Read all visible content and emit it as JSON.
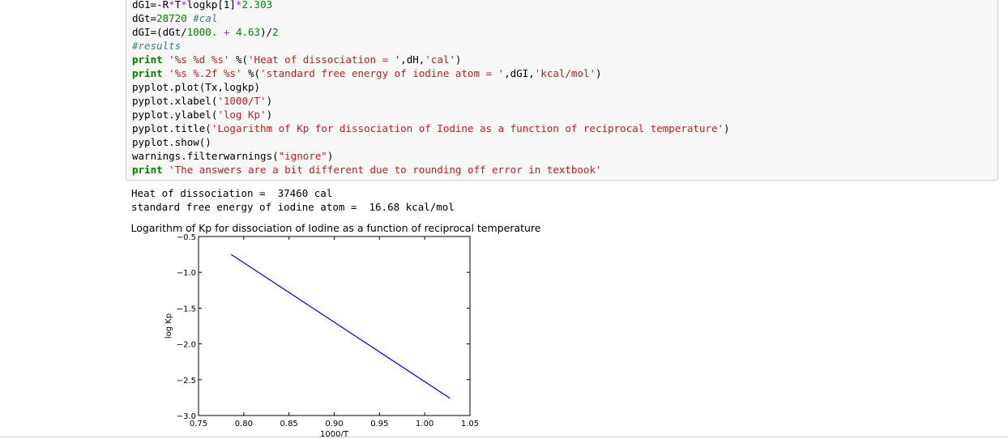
{
  "code_cell": {
    "lines": [
      [
        {
          "t": "dG1=-R",
          "c": ""
        },
        {
          "t": "*",
          "c": "op"
        },
        {
          "t": "T",
          "c": ""
        },
        {
          "t": "*",
          "c": "op"
        },
        {
          "t": "logkp[1]",
          "c": ""
        },
        {
          "t": "*",
          "c": "op"
        },
        {
          "t": "2.303",
          "c": "num"
        }
      ],
      [
        {
          "t": "dGt=",
          "c": ""
        },
        {
          "t": "28720",
          "c": "num"
        },
        {
          "t": " ",
          "c": ""
        },
        {
          "t": "#cal",
          "c": "cmt"
        }
      ],
      [
        {
          "t": "dGI=(dGt/",
          "c": ""
        },
        {
          "t": "1000.",
          "c": "num"
        },
        {
          "t": " ",
          "c": ""
        },
        {
          "t": "+",
          "c": "op"
        },
        {
          "t": " ",
          "c": ""
        },
        {
          "t": "4.63",
          "c": "num"
        },
        {
          "t": ")/",
          "c": ""
        },
        {
          "t": "2",
          "c": "num"
        }
      ],
      [
        {
          "t": "#results",
          "c": "cmt"
        }
      ],
      [
        {
          "t": "print",
          "c": "kw"
        },
        {
          "t": " ",
          "c": ""
        },
        {
          "t": "'%s %d %s'",
          "c": "str"
        },
        {
          "t": " %(",
          "c": ""
        },
        {
          "t": "'Heat of dissociation = '",
          "c": "str"
        },
        {
          "t": ",dH,",
          "c": ""
        },
        {
          "t": "'cal'",
          "c": "str"
        },
        {
          "t": ")",
          "c": ""
        }
      ],
      [
        {
          "t": "print",
          "c": "kw"
        },
        {
          "t": " ",
          "c": ""
        },
        {
          "t": "'%s %.2f %s'",
          "c": "str"
        },
        {
          "t": " %(",
          "c": ""
        },
        {
          "t": "'standard free energy of iodine atom = '",
          "c": "str"
        },
        {
          "t": ",dGI,",
          "c": ""
        },
        {
          "t": "'kcal/mol'",
          "c": "str"
        },
        {
          "t": ")",
          "c": ""
        }
      ],
      [
        {
          "t": "pyplot.plot(Tx,logkp)",
          "c": ""
        }
      ],
      [
        {
          "t": "pyplot.xlabel(",
          "c": ""
        },
        {
          "t": "'1000/T'",
          "c": "str"
        },
        {
          "t": ")",
          "c": ""
        }
      ],
      [
        {
          "t": "pyplot.ylabel(",
          "c": ""
        },
        {
          "t": "'log Kp'",
          "c": "str"
        },
        {
          "t": ")",
          "c": ""
        }
      ],
      [
        {
          "t": "pyplot.title(",
          "c": ""
        },
        {
          "t": "'Logarithm of Kp for dissociation of Iodine as a function of reciprocal temperature'",
          "c": "str"
        },
        {
          "t": ")",
          "c": ""
        }
      ],
      [
        {
          "t": "pyplot.show()",
          "c": ""
        }
      ],
      [
        {
          "t": "warnings.filterwarnings(",
          "c": ""
        },
        {
          "t": "\"ignore\"",
          "c": "str"
        },
        {
          "t": ")",
          "c": ""
        }
      ],
      [
        {
          "t": "print",
          "c": "kw"
        },
        {
          "t": " ",
          "c": ""
        },
        {
          "t": "'The answers are a bit different due to rounding off error in textbook'",
          "c": "str"
        }
      ]
    ]
  },
  "output": {
    "lines": [
      "Heat of dissociation =  37460 cal",
      "standard free energy of iodine atom =  16.68 kcal/mol"
    ]
  },
  "chart_data": {
    "type": "line",
    "title": "Logarithm of Kp for dissociation of Iodine as a function of reciprocal temperature",
    "xlabel": "1000/T",
    "ylabel": "log Kp",
    "xlim": [
      0.75,
      1.05
    ],
    "ylim": [
      -3.0,
      -0.5
    ],
    "xticks": [
      "0.75",
      "0.80",
      "0.85",
      "0.90",
      "0.95",
      "1.00",
      "1.05"
    ],
    "yticks": [
      "-0.5",
      "-1.0",
      "-1.5",
      "-2.0",
      "-2.5",
      "-3.0"
    ],
    "series": [
      {
        "x": [
          0.786,
          1.028
        ],
        "y": [
          -0.75,
          -2.76
        ],
        "color": "#0000ff"
      }
    ]
  }
}
